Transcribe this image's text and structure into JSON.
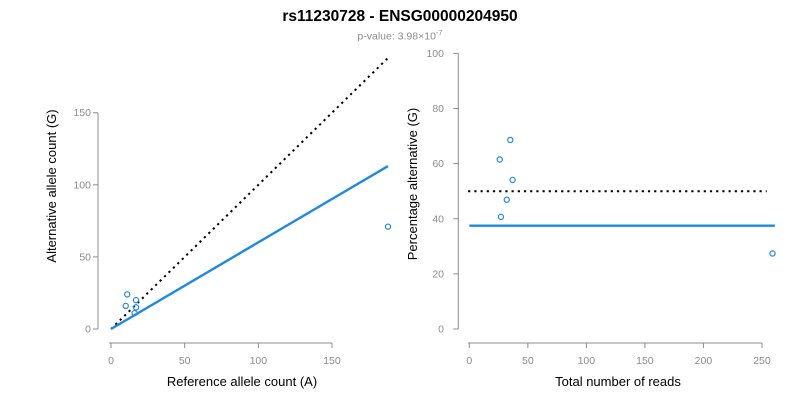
{
  "header": {
    "title": "rs11230728 - ENSG00000204950",
    "pvalue_label": "p-value: 3.98×10",
    "pvalue_exponent": "-7"
  },
  "colors": {
    "accent_blue": "#1E88E5",
    "line_black": "#000000",
    "axis_gray": "#8C8C8C",
    "subtitle_gray": "#8C8C8C"
  },
  "chart_data": [
    {
      "type": "scatter",
      "name": "allele-count-scatter",
      "xlabel": "Reference allele count (A)",
      "ylabel": "Alternative allele count (G)",
      "xticks": [
        0,
        50,
        100,
        150
      ],
      "yticks": [
        0,
        50,
        100,
        150
      ],
      "xlim": [
        0,
        190
      ],
      "ylim": [
        0,
        195
      ],
      "grid": false,
      "legend": false,
      "points": [
        [
          11,
          24
        ],
        [
          10,
          16
        ],
        [
          17,
          20
        ],
        [
          17,
          15
        ],
        [
          16,
          11
        ],
        [
          188,
          71
        ]
      ],
      "lines": [
        {
          "name": "identity-line",
          "style": "dotted",
          "color": "#000000",
          "x1": 0,
          "y1": 0,
          "x2": 188,
          "y2": 188
        },
        {
          "name": "regression-line",
          "style": "solid",
          "color": "#1E88E5",
          "x1": 0,
          "y1": 0,
          "x2": 188,
          "y2": 113
        }
      ]
    },
    {
      "type": "scatter",
      "name": "percentage-vs-reads-scatter",
      "xlabel": "Total number of reads",
      "ylabel": "Percentage alternative (G)",
      "xticks": [
        0,
        50,
        100,
        150,
        200,
        250
      ],
      "yticks": [
        0,
        20,
        40,
        60,
        80,
        100
      ],
      "xlim": [
        0,
        261
      ],
      "ylim": [
        0,
        100
      ],
      "grid": false,
      "legend": false,
      "points": [
        [
          35,
          68.6
        ],
        [
          26,
          61.5
        ],
        [
          37,
          54.1
        ],
        [
          32,
          46.9
        ],
        [
          27,
          40.7
        ],
        [
          259,
          27.4
        ]
      ],
      "lines": [
        {
          "name": "fifty-percent-line",
          "style": "dotted",
          "color": "#000000",
          "x1": -1,
          "y1": 50,
          "x2": 254,
          "y2": 50
        },
        {
          "name": "mean-percentage-line",
          "style": "solid",
          "color": "#1E88E5",
          "x1": 0,
          "y1": 37.5,
          "x2": 261,
          "y2": 37.5
        }
      ]
    }
  ]
}
